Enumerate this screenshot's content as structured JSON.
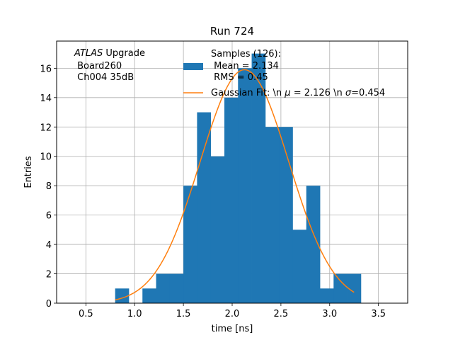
{
  "chart_data": {
    "type": "bar",
    "title": "Run 724",
    "xlabel": "time [ns]",
    "ylabel": "Entries",
    "xlim": [
      0.2,
      3.8
    ],
    "ylim": [
      0,
      17.85
    ],
    "grid": true,
    "x_ticks": [
      0.5,
      1.0,
      1.5,
      2.0,
      2.5,
      3.0,
      3.5
    ],
    "x_tick_labels": [
      "0.5",
      "1.0",
      "1.5",
      "2.0",
      "2.5",
      "3.0",
      "3.5"
    ],
    "y_ticks": [
      0,
      2,
      4,
      6,
      8,
      10,
      12,
      14,
      16
    ],
    "y_tick_labels": [
      "0",
      "2",
      "4",
      "6",
      "8",
      "10",
      "12",
      "14",
      "16"
    ],
    "annotation": {
      "lines": [
        {
          "italic": "ATLAS",
          "text": " Upgrade"
        },
        {
          "text": " Board260"
        },
        {
          "text": " Ch004 35dB"
        }
      ]
    },
    "legend_position": "top-right",
    "histogram": {
      "name_lines": [
        "Samples (126):",
        " Mean = 2.134",
        " RMS = 0.45"
      ],
      "color": "#1f77b4",
      "bin_edges": [
        0.8,
        0.94,
        1.08,
        1.22,
        1.36,
        1.5,
        1.64,
        1.78,
        1.92,
        2.06,
        2.2,
        2.34,
        2.48,
        2.62,
        2.76,
        2.9,
        3.04,
        3.18,
        3.32
      ],
      "counts": [
        1,
        0,
        1,
        2,
        2,
        8,
        13,
        10,
        14,
        16,
        17,
        12,
        12,
        5,
        8,
        1,
        2,
        2
      ]
    },
    "fit": {
      "name": "Gaussian Fit: \\n $\\mu$ = 2.126 \\n $\\sigma$=0.454",
      "legend_prefix": "Gaussian Fit: \\n ",
      "mu_symbol": "μ",
      "mu_text": " = 2.126 \\n ",
      "sigma_symbol": "σ",
      "sigma_text": "=0.454",
      "color": "#ff7f0e",
      "amplitude": 15.9,
      "mu": 2.126,
      "sigma": 0.454,
      "x_range": [
        0.8,
        3.25
      ]
    }
  }
}
